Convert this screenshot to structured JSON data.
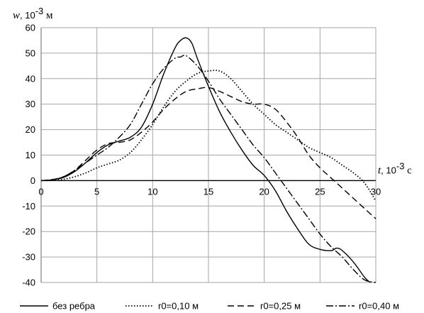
{
  "chart_data": {
    "type": "line",
    "x_axis": {
      "name": "t",
      "unit_prefix": ", 10",
      "unit_exp": "-3",
      "unit_suffix": " с",
      "range": [
        0,
        30
      ],
      "ticks": [
        0,
        5,
        10,
        15,
        20,
        25,
        30
      ]
    },
    "y_axis": {
      "name": "w",
      "unit_prefix": ",  10",
      "unit_exp": "-3",
      "unit_suffix": " м",
      "range": [
        -40,
        60
      ],
      "ticks": [
        -40,
        -30,
        -20,
        -10,
        0,
        10,
        20,
        30,
        40,
        50,
        60
      ]
    },
    "grid": true,
    "legend_position": "bottom",
    "series": [
      {
        "name": "без ребра",
        "style": "solid",
        "color": "#000000",
        "points": [
          [
            0,
            0
          ],
          [
            1,
            0.3
          ],
          [
            2,
            1.2
          ],
          [
            3,
            3.5
          ],
          [
            4,
            7
          ],
          [
            5,
            11
          ],
          [
            6,
            14
          ],
          [
            7,
            15.5
          ],
          [
            8,
            17
          ],
          [
            9,
            21
          ],
          [
            10,
            30
          ],
          [
            11,
            42
          ],
          [
            12,
            52
          ],
          [
            12.5,
            55
          ],
          [
            13,
            56
          ],
          [
            13.5,
            54
          ],
          [
            14,
            48
          ],
          [
            15,
            37
          ],
          [
            16,
            27
          ],
          [
            17,
            19
          ],
          [
            18,
            12
          ],
          [
            19,
            6
          ],
          [
            20,
            2
          ],
          [
            21,
            -4
          ],
          [
            22,
            -12
          ],
          [
            23,
            -19
          ],
          [
            24,
            -25
          ],
          [
            25,
            -27
          ],
          [
            26,
            -27.5
          ],
          [
            26.5,
            -26.5
          ],
          [
            27,
            -27.5
          ],
          [
            28,
            -32
          ],
          [
            29,
            -38
          ],
          [
            29.5,
            -40
          ]
        ]
      },
      {
        "name": "r0=0,10 м",
        "style": "dotted",
        "color": "#000000",
        "points": [
          [
            0,
            0
          ],
          [
            1,
            0.1
          ],
          [
            2,
            0.5
          ],
          [
            3,
            1.5
          ],
          [
            4,
            3
          ],
          [
            5,
            5
          ],
          [
            6,
            6.5
          ],
          [
            7,
            8
          ],
          [
            8,
            11
          ],
          [
            9,
            16
          ],
          [
            10,
            22
          ],
          [
            11,
            29
          ],
          [
            12,
            35
          ],
          [
            13,
            39
          ],
          [
            14,
            42
          ],
          [
            15,
            43
          ],
          [
            16,
            43
          ],
          [
            17,
            40
          ],
          [
            18,
            35
          ],
          [
            19,
            30
          ],
          [
            20,
            26
          ],
          [
            21,
            22
          ],
          [
            22,
            19
          ],
          [
            23,
            16
          ],
          [
            24,
            13
          ],
          [
            25,
            11
          ],
          [
            26,
            9
          ],
          [
            27,
            6
          ],
          [
            28,
            3
          ],
          [
            29,
            -1
          ],
          [
            30,
            -8
          ]
        ]
      },
      {
        "name": "r0=0,25 м",
        "style": "dashed",
        "color": "#000000",
        "points": [
          [
            0,
            0
          ],
          [
            1,
            0.4
          ],
          [
            2,
            1.5
          ],
          [
            3,
            4
          ],
          [
            4,
            8
          ],
          [
            5,
            12
          ],
          [
            6,
            14.5
          ],
          [
            7,
            15
          ],
          [
            8,
            16
          ],
          [
            9,
            19
          ],
          [
            10,
            23
          ],
          [
            11,
            28
          ],
          [
            12,
            32
          ],
          [
            13,
            35
          ],
          [
            14,
            36
          ],
          [
            15,
            36.5
          ],
          [
            16,
            35
          ],
          [
            17,
            33
          ],
          [
            18,
            31
          ],
          [
            19,
            30
          ],
          [
            20,
            30
          ],
          [
            21,
            28
          ],
          [
            22,
            23
          ],
          [
            23,
            17
          ],
          [
            24,
            10
          ],
          [
            25,
            5
          ],
          [
            26,
            1
          ],
          [
            27,
            -3
          ],
          [
            28,
            -7
          ],
          [
            29,
            -11
          ],
          [
            30,
            -15
          ]
        ]
      },
      {
        "name": "r0=0,40 м",
        "style": "dashdot",
        "color": "#000000",
        "points": [
          [
            0,
            0
          ],
          [
            1,
            0.3
          ],
          [
            2,
            1.5
          ],
          [
            3,
            4
          ],
          [
            4,
            7
          ],
          [
            5,
            10
          ],
          [
            6,
            13
          ],
          [
            7,
            17
          ],
          [
            8,
            22
          ],
          [
            9,
            30
          ],
          [
            10,
            38
          ],
          [
            11,
            44
          ],
          [
            12,
            48
          ],
          [
            12.5,
            48.5
          ],
          [
            13,
            49
          ],
          [
            14,
            45
          ],
          [
            15,
            39
          ],
          [
            16,
            32
          ],
          [
            17,
            26
          ],
          [
            18,
            20
          ],
          [
            19,
            14
          ],
          [
            20,
            9
          ],
          [
            21,
            3
          ],
          [
            22,
            -3
          ],
          [
            23,
            -9
          ],
          [
            24,
            -15
          ],
          [
            25,
            -21
          ],
          [
            26,
            -26
          ],
          [
            27,
            -30
          ],
          [
            28,
            -35
          ],
          [
            29,
            -39
          ],
          [
            30,
            -40
          ]
        ]
      }
    ]
  }
}
